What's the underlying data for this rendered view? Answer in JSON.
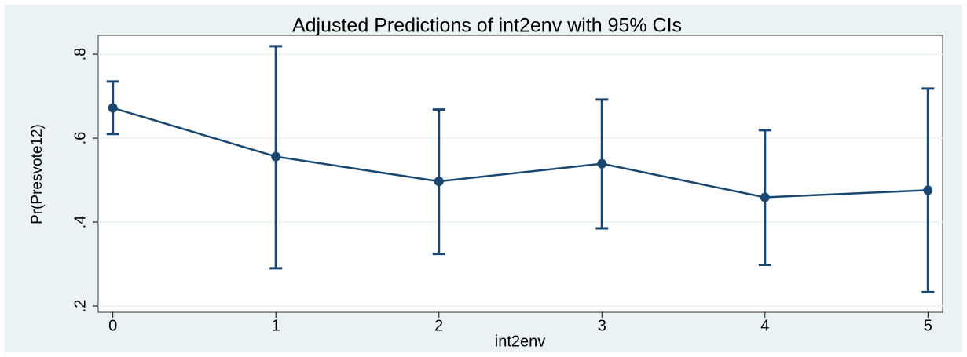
{
  "chart_data": {
    "type": "line",
    "title": "Adjusted Predictions of int2env with 95% CIs",
    "x_label": "int2env",
    "y_label": "Pr(Presvote12)",
    "x": [
      0,
      1,
      2,
      3,
      4,
      5
    ],
    "series": [
      {
        "color": "#1a476f",
        "values": [
          0.672,
          0.556,
          0.497,
          0.539,
          0.459,
          0.476
        ],
        "ci_lower": [
          0.61,
          0.29,
          0.324,
          0.385,
          0.298,
          0.233
        ],
        "ci_upper": [
          0.735,
          0.819,
          0.668,
          0.692,
          0.619,
          0.718
        ]
      }
    ],
    "xlim": [
      -0.09,
      5.09
    ],
    "xticks": [
      0,
      1,
      2,
      3,
      4,
      5
    ],
    "ylim": [
      0.185,
      0.845
    ],
    "yticks": [
      {
        "value": 0.2,
        "label": ".2"
      },
      {
        "value": 0.4,
        "label": ".4"
      },
      {
        "value": 0.6,
        "label": ".6"
      },
      {
        "value": 0.8,
        "label": ".8"
      }
    ],
    "grid": true
  }
}
